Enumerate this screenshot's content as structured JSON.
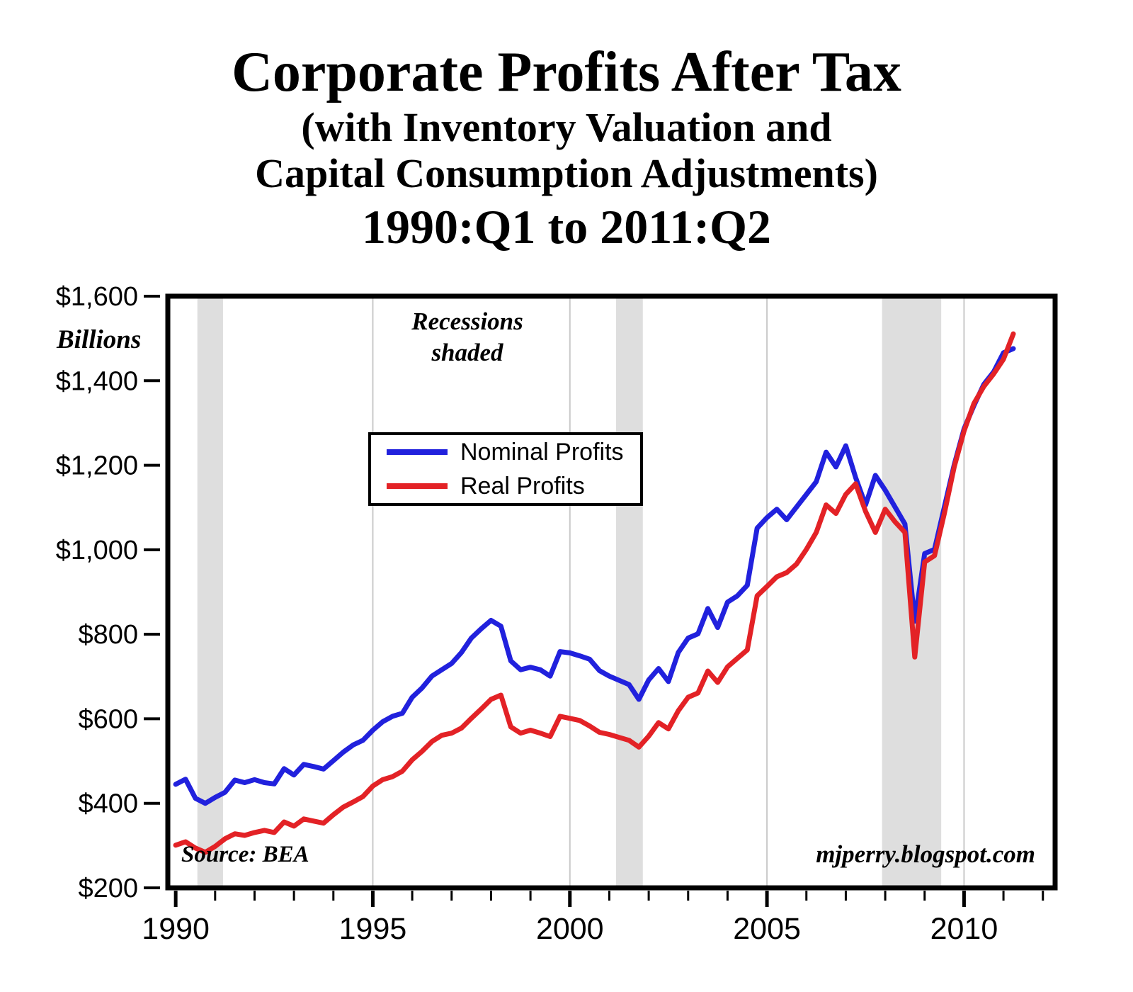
{
  "header": {
    "title": "Corporate Profits After Tax",
    "subtitle_line1": "(with Inventory Valuation and",
    "subtitle_line2": "Capital Consumption Adjustments)",
    "period": "1990:Q1 to 2011:Q2"
  },
  "chart_data": {
    "type": "line",
    "title": "Corporate Profits After Tax (with Inventory Valuation and Capital Consumption Adjustments)",
    "period": "1990:Q1 to 2011:Q2",
    "ylabel": "Billions",
    "ylim": [
      200,
      1600
    ],
    "xlim": [
      1989.8,
      2012.31
    ],
    "grid": "vertical-major-only",
    "legend_position": "upper-center-inside",
    "source_label": "Source: BEA",
    "watermark": "mjperry.blogspot.com",
    "recession_color": "#dedede",
    "annotations": {
      "recessions_line1": "Recessions",
      "recessions_line2": "shaded"
    },
    "y_ticks": [
      {
        "value": 200,
        "label": "$200"
      },
      {
        "value": 400,
        "label": "$400"
      },
      {
        "value": 600,
        "label": "$600"
      },
      {
        "value": 800,
        "label": "$800"
      },
      {
        "value": 1000,
        "label": "$1,000"
      },
      {
        "value": 1200,
        "label": "$1,200"
      },
      {
        "value": 1400,
        "label": "$1,400"
      },
      {
        "value": 1600,
        "label": "$1,600"
      }
    ],
    "x_ticks": [
      {
        "value": 1990,
        "label": "1990"
      },
      {
        "value": 1995,
        "label": "1995"
      },
      {
        "value": 2000,
        "label": "2000"
      },
      {
        "value": 2005,
        "label": "2005"
      },
      {
        "value": 2010,
        "label": "2010"
      }
    ],
    "x_minor_ticks": [
      1990,
      1991,
      1992,
      1993,
      1994,
      1995,
      1996,
      1997,
      1998,
      1999,
      2000,
      2001,
      2002,
      2003,
      2004,
      2005,
      2006,
      2007,
      2008,
      2009,
      2010,
      2011,
      2012
    ],
    "grid_years": [
      1995,
      2000,
      2005,
      2010
    ],
    "recessions": [
      {
        "start": 1990.55,
        "end": 1991.2
      },
      {
        "start": 2001.17,
        "end": 2001.85
      },
      {
        "start": 2007.92,
        "end": 2009.42
      }
    ],
    "x": [
      1990,
      1990.25,
      1990.5,
      1990.75,
      1991,
      1991.25,
      1991.5,
      1991.75,
      1992,
      1992.25,
      1992.5,
      1992.75,
      1993,
      1993.25,
      1993.5,
      1993.75,
      1994,
      1994.25,
      1994.5,
      1994.75,
      1995,
      1995.25,
      1995.5,
      1995.75,
      1996,
      1996.25,
      1996.5,
      1996.75,
      1997,
      1997.25,
      1997.5,
      1997.75,
      1998,
      1998.25,
      1998.5,
      1998.75,
      1999,
      1999.25,
      1999.5,
      1999.75,
      2000,
      2000.25,
      2000.5,
      2000.75,
      2001,
      2001.25,
      2001.5,
      2001.75,
      2002,
      2002.25,
      2002.5,
      2002.75,
      2003,
      2003.25,
      2003.5,
      2003.75,
      2004,
      2004.25,
      2004.5,
      2004.75,
      2005,
      2005.25,
      2005.5,
      2005.75,
      2006,
      2006.25,
      2006.5,
      2006.75,
      2007,
      2007.25,
      2007.5,
      2007.75,
      2008,
      2008.25,
      2008.5,
      2008.75,
      2009,
      2009.25,
      2009.5,
      2009.75,
      2010,
      2010.25,
      2010.5,
      2010.75,
      2011,
      2011.25
    ],
    "series": [
      {
        "name": "Nominal Profits",
        "color": "#2121dd",
        "values": [
          445,
          457,
          412,
          400,
          414,
          426,
          455,
          449,
          456,
          449,
          446,
          482,
          467,
          492,
          487,
          481,
          501,
          521,
          538,
          549,
          573,
          593,
          606,
          613,
          651,
          673,
          701,
          716,
          731,
          757,
          791,
          813,
          833,
          819,
          737,
          716,
          722,
          716,
          701,
          759,
          756,
          749,
          741,
          714,
          701,
          691,
          681,
          646,
          692,
          719,
          688,
          757,
          791,
          801,
          861,
          816,
          876,
          891,
          916,
          1051,
          1076,
          1096,
          1071,
          1101,
          1131,
          1161,
          1231,
          1196,
          1246,
          1171,
          1106,
          1176,
          1141,
          1101,
          1061,
          831,
          991,
          1001,
          1101,
          1201,
          1286,
          1341,
          1391,
          1421,
          1466,
          1476
        ]
      },
      {
        "name": "Real Profits",
        "color": "#e32226",
        "values": [
          301,
          309,
          294,
          284,
          298,
          316,
          328,
          324,
          331,
          336,
          331,
          356,
          346,
          363,
          358,
          353,
          373,
          391,
          403,
          416,
          441,
          456,
          463,
          476,
          503,
          523,
          546,
          561,
          566,
          578,
          601,
          623,
          646,
          656,
          581,
          566,
          573,
          566,
          558,
          606,
          601,
          596,
          583,
          568,
          563,
          556,
          549,
          533,
          559,
          591,
          576,
          619,
          651,
          661,
          713,
          686,
          723,
          743,
          763,
          891,
          913,
          936,
          946,
          966,
          1001,
          1041,
          1106,
          1086,
          1131,
          1156,
          1091,
          1041,
          1096,
          1066,
          1041,
          746,
          971,
          986,
          1086,
          1196,
          1281,
          1346,
          1386,
          1416,
          1451,
          1511
        ]
      }
    ]
  }
}
